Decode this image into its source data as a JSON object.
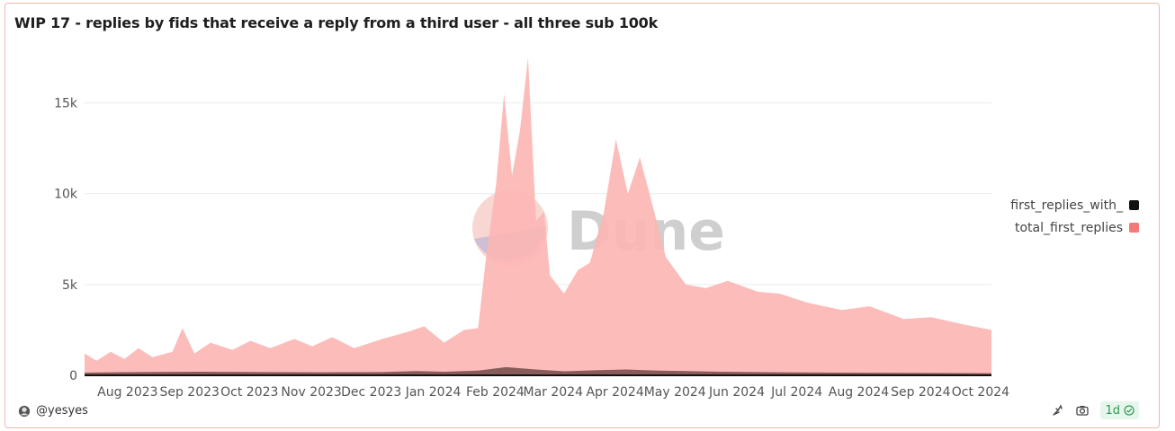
{
  "title": "WIP 17 - replies by fids that receive a reply from a third user - all three sub 100k",
  "watermark": "Dune",
  "author": "@yesyes",
  "refresh_badge": "1d",
  "colors": {
    "total_first_replies": "#fcb6b4",
    "legend_total": "#f47a77",
    "first_replies_with": "#111111",
    "first_replies_with_fill": "#7a5050"
  },
  "icons": [
    "user-avatar-icon",
    "share-icon",
    "camera-icon",
    "check-circle-icon"
  ],
  "chart_data": {
    "type": "area",
    "title": "WIP 17 - replies by fids that receive a reply from a third user - all three sub 100k",
    "xlabel": "",
    "ylabel": "",
    "x_range": [
      "2023-07-19",
      "2024-10-15"
    ],
    "ylim": [
      0,
      17500
    ],
    "yticks": [
      {
        "value": 0,
        "label": "0"
      },
      {
        "value": 5000,
        "label": "5k"
      },
      {
        "value": 10000,
        "label": "10k"
      },
      {
        "value": 15000,
        "label": "15k"
      }
    ],
    "xticks": [
      {
        "date": "2023-08-01",
        "label": "Aug 2023"
      },
      {
        "date": "2023-09-01",
        "label": "Sep 2023"
      },
      {
        "date": "2023-10-01",
        "label": "Oct 2023"
      },
      {
        "date": "2023-11-01",
        "label": "Nov 2023"
      },
      {
        "date": "2023-12-01",
        "label": "Dec 2023"
      },
      {
        "date": "2024-01-01",
        "label": "Jan 2024"
      },
      {
        "date": "2024-02-01",
        "label": "Feb 2024"
      },
      {
        "date": "2024-03-01",
        "label": "Mar 2024"
      },
      {
        "date": "2024-04-01",
        "label": "Apr 2024"
      },
      {
        "date": "2024-05-01",
        "label": "May 2024"
      },
      {
        "date": "2024-06-01",
        "label": "Jun 2024"
      },
      {
        "date": "2024-07-01",
        "label": "Jul 2024"
      },
      {
        "date": "2024-08-01",
        "label": "Aug 2024"
      },
      {
        "date": "2024-09-01",
        "label": "Sep 2024"
      },
      {
        "date": "2024-10-01",
        "label": "Oct 2024"
      }
    ],
    "grid": true,
    "stacked": false,
    "legend": "right",
    "series": [
      {
        "name": "first_replies_with_",
        "color": "#111111",
        "points": [
          [
            "2023-07-19",
            150
          ],
          [
            "2023-08-15",
            180
          ],
          [
            "2023-09-15",
            200
          ],
          [
            "2023-10-15",
            180
          ],
          [
            "2023-11-15",
            170
          ],
          [
            "2023-12-15",
            180
          ],
          [
            "2024-01-01",
            230
          ],
          [
            "2024-01-15",
            200
          ],
          [
            "2024-02-01",
            260
          ],
          [
            "2024-02-15",
            450
          ],
          [
            "2024-03-01",
            320
          ],
          [
            "2024-03-15",
            220
          ],
          [
            "2024-04-01",
            280
          ],
          [
            "2024-04-15",
            320
          ],
          [
            "2024-05-01",
            260
          ],
          [
            "2024-06-01",
            200
          ],
          [
            "2024-07-01",
            170
          ],
          [
            "2024-08-01",
            150
          ],
          [
            "2024-09-01",
            140
          ],
          [
            "2024-10-15",
            120
          ]
        ]
      },
      {
        "name": "total_first_replies",
        "color": "#f47a77",
        "points": [
          [
            "2023-07-19",
            1200
          ],
          [
            "2023-07-25",
            800
          ],
          [
            "2023-08-01",
            1300
          ],
          [
            "2023-08-08",
            900
          ],
          [
            "2023-08-15",
            1500
          ],
          [
            "2023-08-22",
            1000
          ],
          [
            "2023-09-01",
            1300
          ],
          [
            "2023-09-06",
            2600
          ],
          [
            "2023-09-12",
            1200
          ],
          [
            "2023-09-20",
            1800
          ],
          [
            "2023-10-01",
            1400
          ],
          [
            "2023-10-10",
            1900
          ],
          [
            "2023-10-20",
            1500
          ],
          [
            "2023-11-01",
            2000
          ],
          [
            "2023-11-10",
            1600
          ],
          [
            "2023-11-20",
            2100
          ],
          [
            "2023-12-01",
            1500
          ],
          [
            "2023-12-15",
            2000
          ],
          [
            "2023-12-28",
            2400
          ],
          [
            "2024-01-05",
            2700
          ],
          [
            "2024-01-15",
            1800
          ],
          [
            "2024-01-25",
            2500
          ],
          [
            "2024-02-01",
            2600
          ],
          [
            "2024-02-05",
            6500
          ],
          [
            "2024-02-10",
            10500
          ],
          [
            "2024-02-14",
            15500
          ],
          [
            "2024-02-18",
            11000
          ],
          [
            "2024-02-22",
            13500
          ],
          [
            "2024-02-26",
            17500
          ],
          [
            "2024-03-01",
            8500
          ],
          [
            "2024-03-05",
            9000
          ],
          [
            "2024-03-08",
            5500
          ],
          [
            "2024-03-15",
            4500
          ],
          [
            "2024-03-22",
            5800
          ],
          [
            "2024-03-28",
            6200
          ],
          [
            "2024-04-04",
            9000
          ],
          [
            "2024-04-10",
            13000
          ],
          [
            "2024-04-16",
            10000
          ],
          [
            "2024-04-22",
            12000
          ],
          [
            "2024-04-28",
            9500
          ],
          [
            "2024-05-05",
            6500
          ],
          [
            "2024-05-15",
            5000
          ],
          [
            "2024-05-25",
            4800
          ],
          [
            "2024-06-05",
            5200
          ],
          [
            "2024-06-20",
            4600
          ],
          [
            "2024-07-01",
            4500
          ],
          [
            "2024-07-15",
            4000
          ],
          [
            "2024-08-01",
            3600
          ],
          [
            "2024-08-15",
            3800
          ],
          [
            "2024-09-01",
            3100
          ],
          [
            "2024-09-15",
            3200
          ],
          [
            "2024-10-01",
            2800
          ],
          [
            "2024-10-15",
            2500
          ]
        ]
      }
    ]
  }
}
